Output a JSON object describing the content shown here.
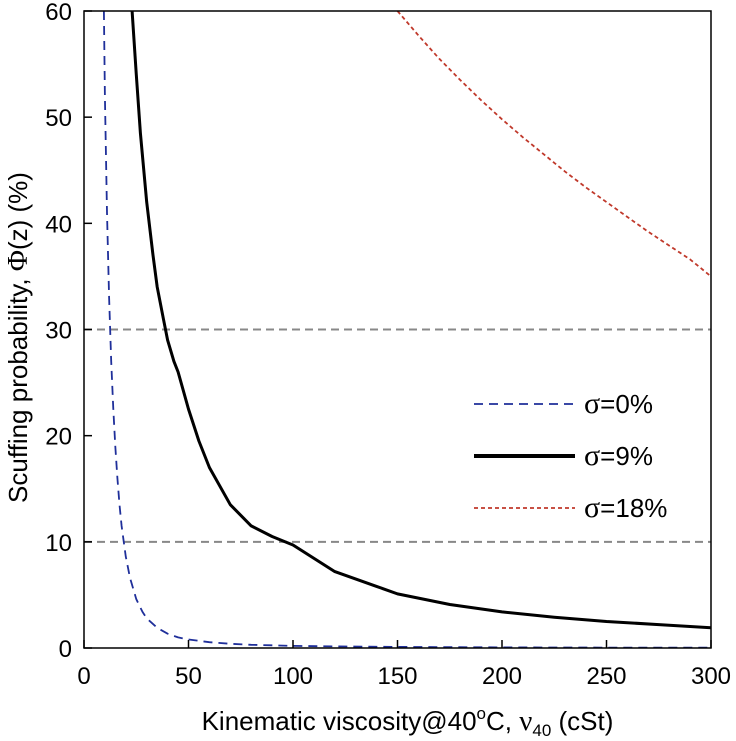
{
  "chart_data": {
    "type": "line",
    "xlabel_parts": {
      "main": "Kinematic viscosity@40",
      "deg": "o",
      "unit": "C, ",
      "nu": "ν",
      "sub": "40",
      "end": " (cSt)"
    },
    "ylabel_parts": {
      "main": "Scuffing probability, ",
      "phi": "Φ",
      "end": "(z) (%)"
    },
    "xlim": [
      0,
      300
    ],
    "ylim": [
      0,
      60
    ],
    "x_ticks": [
      "0",
      "50",
      "100",
      "150",
      "200",
      "250",
      "300"
    ],
    "y_ticks": [
      "0",
      "10",
      "20",
      "30",
      "40",
      "50",
      "60"
    ],
    "reference_lines_y": [
      10,
      30
    ],
    "legend_position": "center-right",
    "series": [
      {
        "sigma": "σ",
        "label": "=0%",
        "color": "#1f2f9a",
        "style": "dashed",
        "x": [
          9.5,
          10,
          11,
          12,
          13,
          14,
          15,
          16,
          17,
          18,
          20,
          22,
          25,
          28,
          30,
          35,
          40,
          45,
          50,
          60,
          70,
          80,
          90,
          100,
          120,
          150,
          200,
          250,
          300
        ],
        "y": [
          60,
          52,
          41,
          33,
          27,
          22.5,
          19,
          16,
          13.5,
          11.5,
          8.6,
          6.6,
          4.6,
          3.4,
          2.8,
          1.9,
          1.35,
          1.0,
          0.8,
          0.55,
          0.4,
          0.3,
          0.25,
          0.2,
          0.15,
          0.1,
          0.06,
          0.04,
          0.03
        ]
      },
      {
        "sigma": "σ",
        "label": "=9%",
        "color": "#000000",
        "style": "solid",
        "x": [
          23,
          25,
          27,
          30,
          33,
          35,
          38,
          40,
          43,
          45,
          50,
          55,
          60,
          70,
          80,
          90,
          100,
          120,
          140,
          150,
          175,
          200,
          225,
          250,
          275,
          300
        ],
        "y": [
          60,
          54,
          48.5,
          42,
          37,
          34,
          31,
          29,
          27,
          26,
          22.5,
          19.5,
          17,
          13.5,
          11.5,
          10.5,
          9.7,
          7.2,
          5.8,
          5.1,
          4.1,
          3.4,
          2.9,
          2.5,
          2.2,
          1.9
        ]
      },
      {
        "sigma": "σ",
        "label": "=18%",
        "color": "#c0392b",
        "style": "dotted",
        "x": [
          150,
          160,
          170,
          180,
          190,
          200,
          210,
          220,
          230,
          240,
          250,
          260,
          270,
          280,
          290,
          300
        ],
        "y": [
          60,
          57.7,
          55.5,
          53.5,
          51.6,
          49.8,
          48.1,
          46.5,
          44.9,
          43.4,
          42,
          40.6,
          39.2,
          37.9,
          36.6,
          35
        ]
      }
    ]
  }
}
